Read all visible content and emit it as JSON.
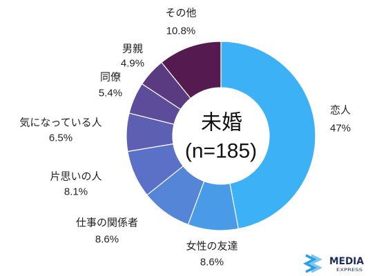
{
  "chart_data": {
    "type": "pie",
    "donut": true,
    "center_label": "未婚",
    "center_sublabel": "(n=185)",
    "slices": [
      {
        "label": "恋人",
        "value": 47,
        "value_label": "47%",
        "color": "#3db1f5"
      },
      {
        "label": "女性の友達",
        "value": 8.6,
        "value_label": "8.6%",
        "color": "#4a9be7"
      },
      {
        "label": "仕事の関係者",
        "value": 8.6,
        "value_label": "8.6%",
        "color": "#5585d7"
      },
      {
        "label": "片思いの人",
        "value": 8.1,
        "value_label": "8.1%",
        "color": "#5a71c7"
      },
      {
        "label": "気になっている人",
        "value": 6.5,
        "value_label": "6.5%",
        "color": "#5c5fb2"
      },
      {
        "label": "同僚",
        "value": 5.4,
        "value_label": "5.4%",
        "color": "#5c4c9a"
      },
      {
        "label": "男親",
        "value": 4.9,
        "value_label": "4.9%",
        "color": "#5a3a80"
      },
      {
        "label": "その他",
        "value": 10.8,
        "value_label": "10.8%",
        "color": "#551b51"
      }
    ]
  },
  "logo": {
    "name": "MEDIA",
    "tagline": "EXPRESS",
    "text_color": "#1f2d5c",
    "icon_color": "#2a9fe3",
    "icon": "chevron-stripes-icon"
  }
}
